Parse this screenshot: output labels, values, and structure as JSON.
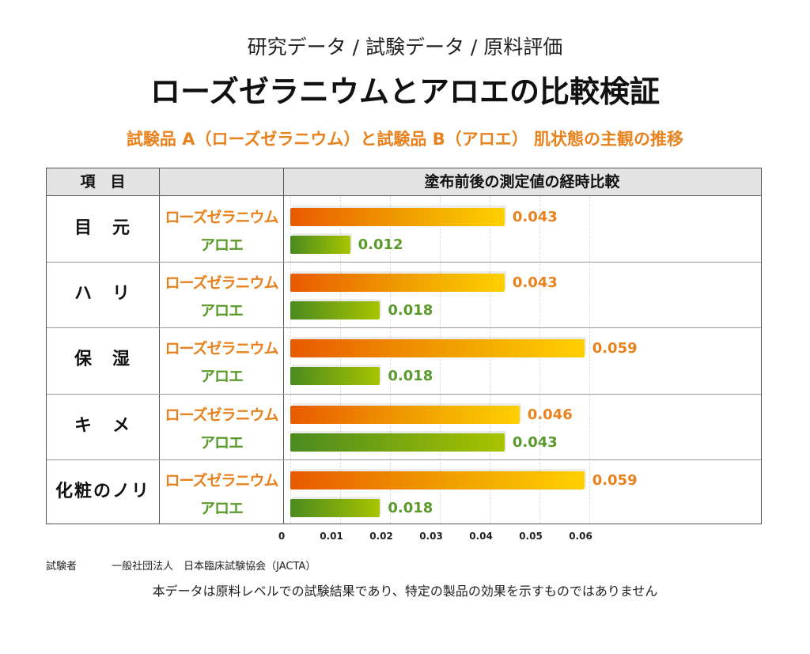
{
  "header": {
    "breadcrumb": "研究データ / 試験データ / 原料評価",
    "title": "ローズゼラニウムとアロエの比較検証",
    "subtitle": "試験品 A（ローズゼラニウム）と試験品 B（アロエ） 肌状態の主観の推移"
  },
  "table": {
    "col_item": "項　目",
    "col_chart": "塗布前後の測定値の経時比較"
  },
  "chart_data": {
    "type": "bar",
    "orientation": "horizontal",
    "title": "塗布前後の測定値の経時比較",
    "categories": [
      "目　元",
      "ハ　リ",
      "保　湿",
      "キ　メ",
      "化粧のノリ"
    ],
    "series": [
      {
        "name": "ローズゼラニウム",
        "color": "#e8821e",
        "values": [
          0.043,
          0.043,
          0.059,
          0.046,
          0.059
        ],
        "labels": [
          "0.043",
          "0.043",
          "0.059",
          "0.046",
          "0.059"
        ]
      },
      {
        "name": "アロエ",
        "color": "#5a9a2a",
        "values": [
          0.012,
          0.018,
          0.018,
          0.043,
          0.018
        ],
        "labels": [
          "0.012",
          "0.018",
          "0.018",
          "0.043",
          "0.018"
        ]
      }
    ],
    "xlim": [
      0,
      0.06
    ],
    "xticks": [
      "0",
      "0.01",
      "0.02",
      "0.03",
      "0.04",
      "0.05",
      "0.06"
    ],
    "grid": true
  },
  "footer": {
    "tester_label": "試験者",
    "tester_name": "一般社団法人　日本臨床試験協会（JACTA）",
    "note": "本データは原料レベルでの試験結果であり、特定の製品の効果を示すものではありません"
  }
}
